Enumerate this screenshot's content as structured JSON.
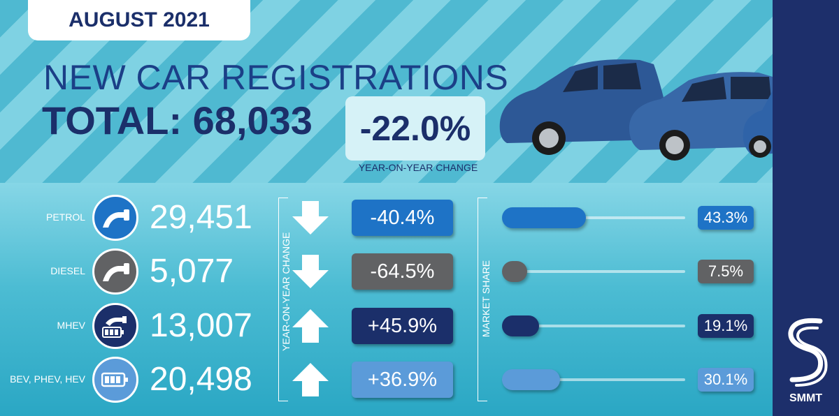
{
  "header": {
    "month": "AUGUST 2021",
    "headline": "NEW CAR REGISTRATIONS",
    "total_label": "TOTAL: 68,033",
    "yoy_change": "-22.0%",
    "yoy_caption": "YEAR-ON-YEAR CHANGE"
  },
  "axes": {
    "change_label": "YEAR-ON-YEAR CHANGE",
    "share_label": "MARKET SHARE"
  },
  "rows": [
    {
      "label": "PETROL",
      "value": "29,451",
      "change": "-40.4%",
      "direction": "down",
      "share": "43.3%",
      "share_pct": 43.3,
      "color": "#1e73c6",
      "icon": "fuel-pump-icon"
    },
    {
      "label": "DIESEL",
      "value": "5,077",
      "change": "-64.5%",
      "direction": "down",
      "share": "7.5%",
      "share_pct": 7.5,
      "color": "#616264",
      "icon": "fuel-pump-icon"
    },
    {
      "label": "MHEV",
      "value": "13,007",
      "change": "+45.9%",
      "direction": "up",
      "share": "19.1%",
      "share_pct": 19.1,
      "color": "#1b2f6a",
      "icon": "fuel-pump-battery-icon"
    },
    {
      "label": "BEV, PHEV, HEV",
      "value": "20,498",
      "change": "+36.9%",
      "direction": "up",
      "share": "30.1%",
      "share_pct": 30.1,
      "color": "#5b9bd9",
      "icon": "battery-icon"
    }
  ],
  "brand": {
    "name": "SMMT",
    "color": "#1d2f6b"
  }
}
